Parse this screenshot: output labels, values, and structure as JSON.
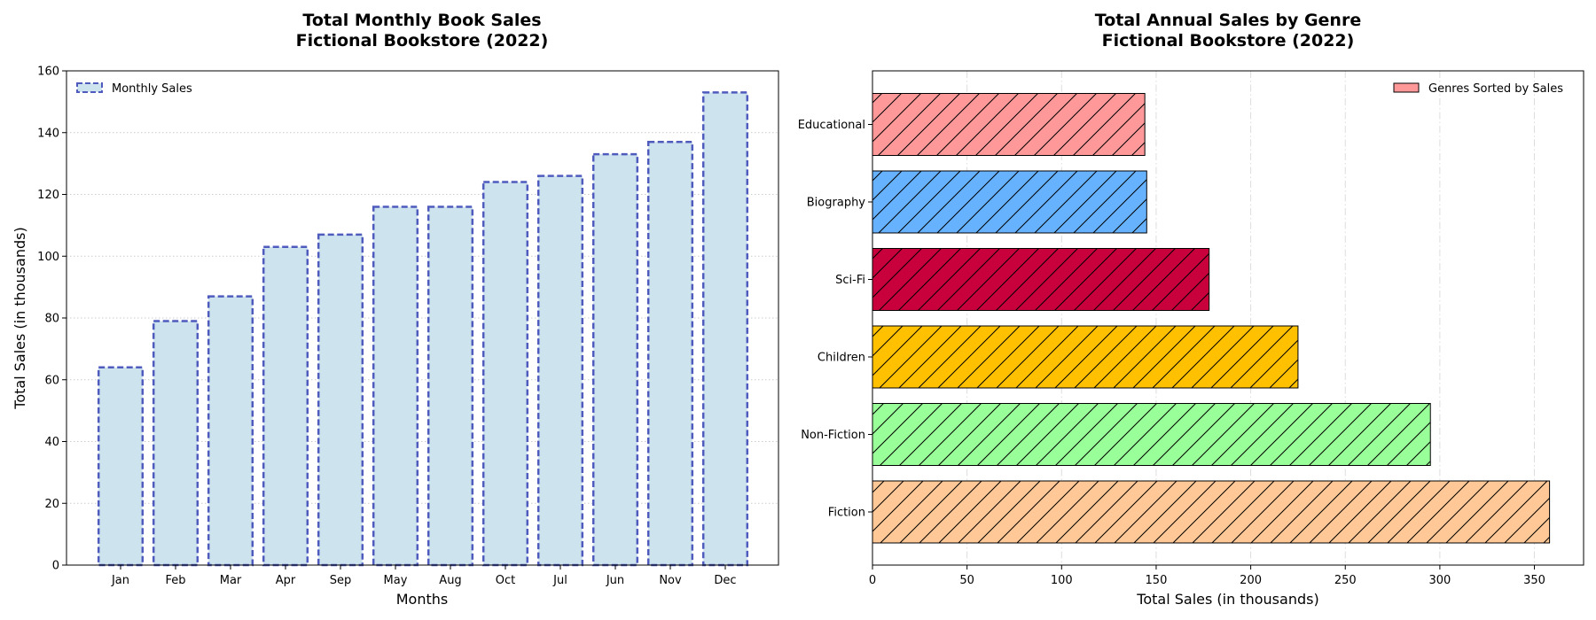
{
  "chart_data": [
    {
      "type": "bar",
      "title_line1": "Total Monthly Book Sales",
      "title_line2": "Fictional Bookstore (2022)",
      "xlabel": "Months",
      "ylabel": "Total Sales (in thousands)",
      "categories": [
        "Jan",
        "Feb",
        "Mar",
        "Apr",
        "Sep",
        "May",
        "Aug",
        "Oct",
        "Jul",
        "Jun",
        "Nov",
        "Dec"
      ],
      "series": [
        {
          "name": "Monthly Sales",
          "values": [
            64,
            79,
            87,
            103,
            107,
            116,
            116,
            124,
            126,
            133,
            137,
            153
          ]
        }
      ],
      "ylim": [
        0,
        160
      ],
      "yticks": [
        0,
        20,
        40,
        60,
        80,
        100,
        120,
        140,
        160
      ],
      "grid": "horizontal dotted",
      "legend_position": "top-left",
      "colors": {
        "fill": "#cde4ef",
        "edge": "#4f5bbd"
      }
    },
    {
      "type": "bar",
      "orientation": "horizontal",
      "title_line1": "Total Annual Sales by Genre",
      "title_line2": "Fictional Bookstore (2022)",
      "xlabel": "Total Sales (in thousands)",
      "ylabel": "",
      "categories": [
        "Fiction",
        "Non-Fiction",
        "Children",
        "Sci-Fi",
        "Biography",
        "Educational"
      ],
      "series": [
        {
          "name": "Genres Sorted by Sales",
          "values": [
            358,
            295,
            225,
            178,
            145,
            144
          ]
        }
      ],
      "colors": [
        "#ffc896",
        "#99ff99",
        "#ffc000",
        "#c8003c",
        "#66b2ff",
        "#ff9999"
      ],
      "xlim": [
        0,
        376
      ],
      "xticks": [
        0,
        50,
        100,
        150,
        200,
        250,
        300,
        350
      ],
      "grid": "vertical dash-dot",
      "hatch": "diagonal",
      "legend_position": "top-right"
    }
  ]
}
